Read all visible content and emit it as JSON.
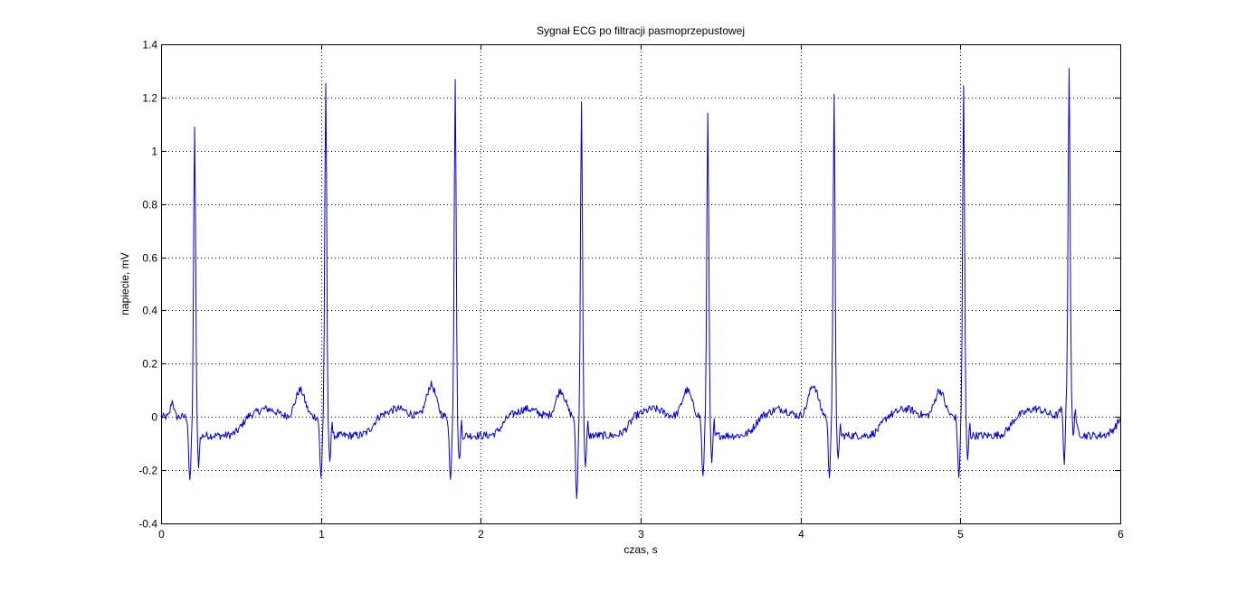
{
  "chart_data": {
    "type": "line",
    "title": "Sygnał ECG po filtracji pasmoprzepustowej",
    "xlabel": "czas, s",
    "ylabel": "napiecie, mV",
    "xlim": [
      0,
      6
    ],
    "ylim": [
      -0.4,
      1.4
    ],
    "xticks": [
      0,
      1,
      2,
      3,
      4,
      5,
      6
    ],
    "xtick_labels": [
      "0",
      "1",
      "2",
      "3",
      "4",
      "5",
      "6"
    ],
    "yticks": [
      -0.4,
      -0.2,
      0,
      0.2,
      0.4,
      0.6,
      0.8,
      1,
      1.2,
      1.4
    ],
    "ytick_labels": [
      "-0.4",
      "-0.2",
      "0",
      "0.2",
      "0.4",
      "0.6",
      "0.8",
      "1",
      "1.2",
      "1.4"
    ],
    "grid": true,
    "line_color": "#0000cc",
    "sampling_interval_s": 0.005,
    "beats": [
      {
        "r_time": 0.21,
        "r_peak": 1.08,
        "q_min": -0.25,
        "s_min": -0.18,
        "t_peak": 0.1
      },
      {
        "r_time": 1.03,
        "r_peak": 1.24,
        "q_min": -0.23,
        "s_min": -0.16,
        "t_peak": 0.12
      },
      {
        "r_time": 1.84,
        "r_peak": 1.28,
        "q_min": -0.24,
        "s_min": -0.17,
        "t_peak": 0.1
      },
      {
        "r_time": 2.63,
        "r_peak": 1.19,
        "q_min": -0.31,
        "s_min": -0.19,
        "t_peak": 0.1
      },
      {
        "r_time": 3.42,
        "r_peak": 1.15,
        "q_min": -0.23,
        "s_min": -0.17,
        "t_peak": 0.12
      },
      {
        "r_time": 4.21,
        "r_peak": 1.2,
        "q_min": -0.22,
        "s_min": -0.17,
        "t_peak": 0.1
      },
      {
        "r_time": 5.02,
        "r_peak": 1.25,
        "q_min": -0.23,
        "s_min": -0.16,
        "t_peak": 0.12
      },
      {
        "r_time": 5.68,
        "r_peak": 1.2,
        "q_min": -0.24,
        "s_min": -0.15,
        "t_peak": 0.13
      }
    ]
  }
}
